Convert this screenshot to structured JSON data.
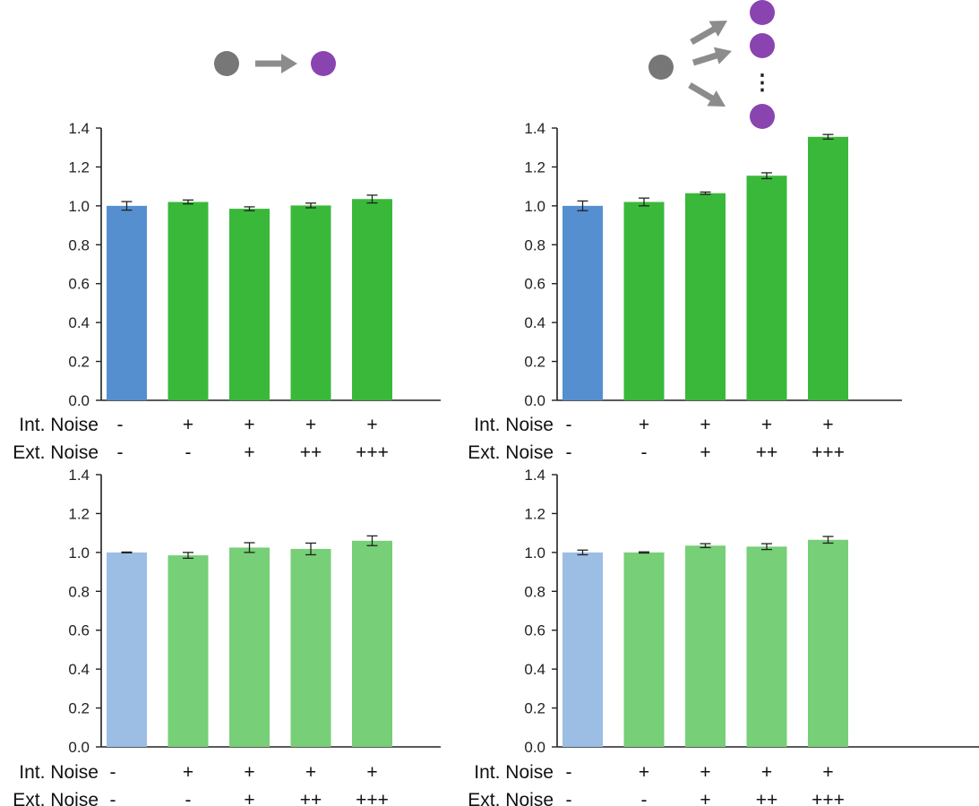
{
  "colors": {
    "control_dark": "#568fd0",
    "noise_dark": "#3ab83a",
    "control_light": "#9cbde4",
    "noise_light": "#77cf77",
    "source_cell": "#777777",
    "target_cell": "#8a44b0",
    "arrow": "#8c8c8c",
    "axis": "#222222"
  },
  "schematics": [
    {
      "kind": "single-target",
      "targets": 1
    },
    {
      "kind": "multi-target",
      "targets": 3,
      "ellipsis": "⋮"
    }
  ],
  "chart_data": [
    {
      "type": "bar",
      "ylim": [
        0,
        1.4
      ],
      "yticks": [
        "0.0",
        "0.2",
        "0.4",
        "0.6",
        "0.8",
        "1.0",
        "1.2",
        "1.4"
      ],
      "shade": "dark",
      "values": [
        1.0,
        1.02,
        0.985,
        1.002,
        1.035
      ],
      "errors": [
        0.022,
        0.01,
        0.01,
        0.012,
        0.02
      ],
      "condition_rows": [
        {
          "label": "Int. Noise",
          "values": [
            "-",
            "+",
            "+",
            "+",
            "+"
          ]
        },
        {
          "label": "Ext. Noise",
          "values": [
            "-",
            "-",
            "+",
            "++",
            "+++"
          ]
        }
      ]
    },
    {
      "type": "bar",
      "ylim": [
        0,
        1.4
      ],
      "yticks": [
        "0.0",
        "0.2",
        "0.4",
        "0.6",
        "0.8",
        "1.0",
        "1.2",
        "1.4"
      ],
      "shade": "dark",
      "values": [
        1.0,
        1.02,
        1.065,
        1.155,
        1.355
      ],
      "errors": [
        0.025,
        0.02,
        0.006,
        0.015,
        0.012
      ],
      "condition_rows": [
        {
          "label": "Int. Noise",
          "values": [
            "-",
            "+",
            "+",
            "+",
            "+"
          ]
        },
        {
          "label": "Ext. Noise",
          "values": [
            "-",
            "-",
            "+",
            "++",
            "+++"
          ]
        }
      ]
    },
    {
      "type": "bar",
      "ylim": [
        0,
        1.4
      ],
      "yticks": [
        "0.0",
        "0.2",
        "0.4",
        "0.6",
        "0.8",
        "1.0",
        "1.2",
        "1.4"
      ],
      "shade": "light",
      "values": [
        1.0,
        0.985,
        1.025,
        1.018,
        1.06
      ],
      "errors": [
        0.002,
        0.015,
        0.025,
        0.03,
        0.025
      ],
      "condition_rows": [
        {
          "label": "Int. Noise",
          "values": [
            "-",
            "+",
            "+",
            "+",
            "+"
          ]
        },
        {
          "label": "Ext. Noise",
          "values": [
            "-",
            "-",
            "+",
            "++",
            "+++"
          ]
        }
      ]
    },
    {
      "type": "bar",
      "ylim": [
        0,
        1.4
      ],
      "yticks": [
        "0.0",
        "0.2",
        "0.4",
        "0.6",
        "0.8",
        "1.0",
        "1.2",
        "1.4"
      ],
      "shade": "light",
      "values": [
        1.0,
        1.0,
        1.035,
        1.03,
        1.065
      ],
      "errors": [
        0.012,
        0.003,
        0.01,
        0.015,
        0.017
      ],
      "condition_rows": [
        {
          "label": "Int. Noise",
          "values": [
            "-",
            "+",
            "+",
            "+",
            "+"
          ]
        },
        {
          "label": "Ext. Noise",
          "values": [
            "-",
            "-",
            "+",
            "++",
            "+++"
          ]
        }
      ]
    }
  ]
}
